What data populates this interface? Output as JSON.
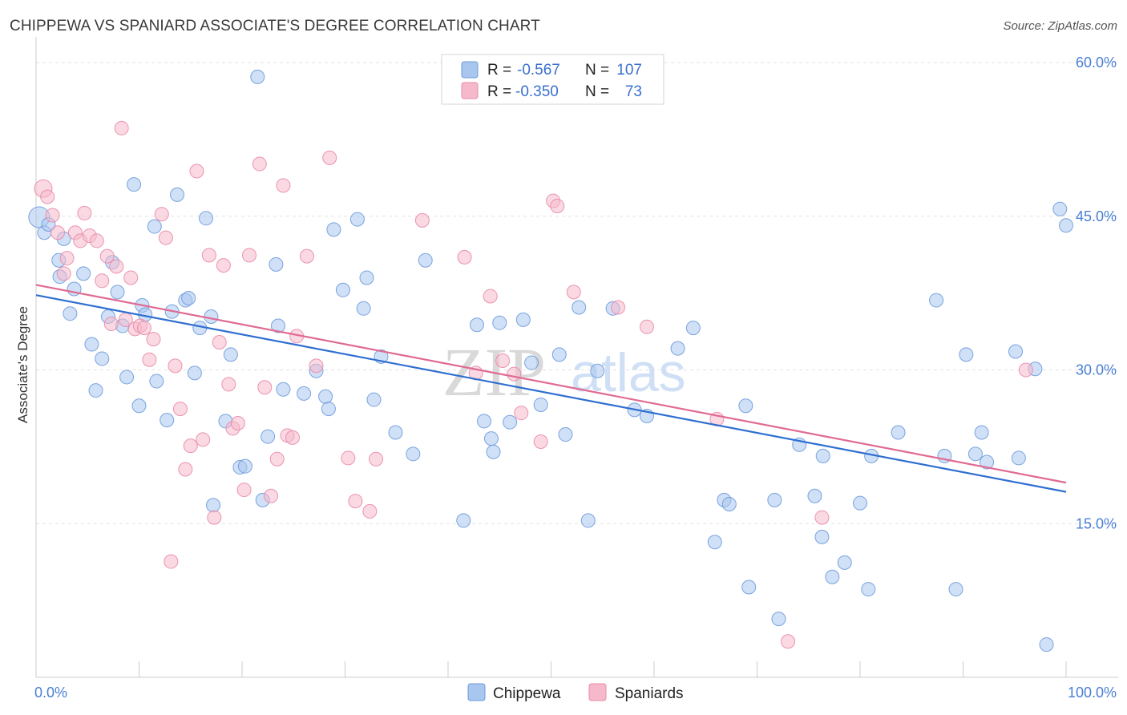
{
  "title": "CHIPPEWA VS SPANIARD ASSOCIATE'S DEGREE CORRELATION CHART",
  "source": "Source: ZipAtlas.com",
  "colors": {
    "chippewa_fill": "#a9c6ee",
    "chippewa_stroke": "#6d9bdc",
    "chippewa_line": "#2f6fd0",
    "spaniards_fill": "#f6b9cc",
    "spaniards_stroke": "#e98aa8",
    "spaniards_line": "#e06a93",
    "axis_label": "#4a7fd4",
    "grid": "#e2e2e2"
  },
  "watermark": {
    "zip": "ZIP",
    "atlas": "atlas"
  },
  "legend": {
    "rows": [
      {
        "r_label": "R = ",
        "r_value": "-0.567",
        "n_label": "N = ",
        "n_value": "107"
      },
      {
        "r_label": "R = ",
        "r_value": "-0.350",
        "n_label": "N = ",
        "n_value": "73"
      }
    ]
  },
  "chart_data": {
    "type": "scatter",
    "title": "CHIPPEWA VS SPANIARD ASSOCIATE'S DEGREE CORRELATION CHART",
    "xlabel": "",
    "ylabel": "Associate's Degree",
    "xlim": [
      0,
      100
    ],
    "ylim": [
      0,
      62.5
    ],
    "x_tick_labels": [
      "0.0%",
      "100.0%"
    ],
    "y_ticks": [
      15,
      30,
      45,
      60
    ],
    "y_tick_labels": [
      "15.0%",
      "30.0%",
      "45.0%",
      "60.0%"
    ],
    "grid": true,
    "legend_position": "top-center",
    "series": [
      {
        "name": "Chippewa",
        "r": -0.567,
        "n": 107,
        "trend": {
          "x": [
            0,
            100
          ],
          "y": [
            37.3,
            18.1
          ]
        },
        "points": [
          [
            0.3,
            44.9
          ],
          [
            0.8,
            43.4
          ],
          [
            1.2,
            44.2
          ],
          [
            2.3,
            39.1
          ],
          [
            2.2,
            40.7
          ],
          [
            2.7,
            42.8
          ],
          [
            3.3,
            35.5
          ],
          [
            3.7,
            37.9
          ],
          [
            4.6,
            39.4
          ],
          [
            5.4,
            32.5
          ],
          [
            5.8,
            28.0
          ],
          [
            6.4,
            31.1
          ],
          [
            7.0,
            35.2
          ],
          [
            7.4,
            40.5
          ],
          [
            7.9,
            37.6
          ],
          [
            8.4,
            34.3
          ],
          [
            8.8,
            29.3
          ],
          [
            9.5,
            48.1
          ],
          [
            10.0,
            26.5
          ],
          [
            10.3,
            36.3
          ],
          [
            10.6,
            35.4
          ],
          [
            11.5,
            44.0
          ],
          [
            11.7,
            28.9
          ],
          [
            12.7,
            25.1
          ],
          [
            13.2,
            35.7
          ],
          [
            13.7,
            47.1
          ],
          [
            14.5,
            36.8
          ],
          [
            14.8,
            37.0
          ],
          [
            15.4,
            29.7
          ],
          [
            15.9,
            34.1
          ],
          [
            16.5,
            44.8
          ],
          [
            17.0,
            35.2
          ],
          [
            17.2,
            16.8
          ],
          [
            18.4,
            25.0
          ],
          [
            18.9,
            31.5
          ],
          [
            19.8,
            20.5
          ],
          [
            20.3,
            20.6
          ],
          [
            21.5,
            58.6
          ],
          [
            22.0,
            17.3
          ],
          [
            22.5,
            23.5
          ],
          [
            23.3,
            40.3
          ],
          [
            23.5,
            34.3
          ],
          [
            24.0,
            28.1
          ],
          [
            26.0,
            27.7
          ],
          [
            27.2,
            29.9
          ],
          [
            28.1,
            27.4
          ],
          [
            28.4,
            26.2
          ],
          [
            28.9,
            43.7
          ],
          [
            29.8,
            37.8
          ],
          [
            31.2,
            44.7
          ],
          [
            31.8,
            36.0
          ],
          [
            32.1,
            39.0
          ],
          [
            32.8,
            27.1
          ],
          [
            33.5,
            31.3
          ],
          [
            34.9,
            23.9
          ],
          [
            36.6,
            21.8
          ],
          [
            37.8,
            40.7
          ],
          [
            41.5,
            15.3
          ],
          [
            42.8,
            34.4
          ],
          [
            43.5,
            25.0
          ],
          [
            44.2,
            23.3
          ],
          [
            44.4,
            22.0
          ],
          [
            45.0,
            34.6
          ],
          [
            46.0,
            24.9
          ],
          [
            47.3,
            34.9
          ],
          [
            48.1,
            30.7
          ],
          [
            49.0,
            26.6
          ],
          [
            50.8,
            31.5
          ],
          [
            51.4,
            23.7
          ],
          [
            52.7,
            36.1
          ],
          [
            53.6,
            15.3
          ],
          [
            54.5,
            29.9
          ],
          [
            56.0,
            36.0
          ],
          [
            58.1,
            26.1
          ],
          [
            59.3,
            25.5
          ],
          [
            62.3,
            32.1
          ],
          [
            63.8,
            34.1
          ],
          [
            65.9,
            13.2
          ],
          [
            66.8,
            17.3
          ],
          [
            67.3,
            16.9
          ],
          [
            68.9,
            26.5
          ],
          [
            69.2,
            8.8
          ],
          [
            71.7,
            17.3
          ],
          [
            72.1,
            5.7
          ],
          [
            74.1,
            22.7
          ],
          [
            75.6,
            17.7
          ],
          [
            76.3,
            13.7
          ],
          [
            76.4,
            21.6
          ],
          [
            77.3,
            9.8
          ],
          [
            78.5,
            11.2
          ],
          [
            80.0,
            17.0
          ],
          [
            80.8,
            8.6
          ],
          [
            81.1,
            21.6
          ],
          [
            83.7,
            23.9
          ],
          [
            87.4,
            36.8
          ],
          [
            88.2,
            21.6
          ],
          [
            89.3,
            8.6
          ],
          [
            90.3,
            31.5
          ],
          [
            91.2,
            21.8
          ],
          [
            91.8,
            23.9
          ],
          [
            92.3,
            21.0
          ],
          [
            95.1,
            31.8
          ],
          [
            95.4,
            21.4
          ],
          [
            97.0,
            30.1
          ],
          [
            98.1,
            3.2
          ],
          [
            99.4,
            45.7
          ],
          [
            100.0,
            44.1
          ]
        ]
      },
      {
        "name": "Spaniards",
        "r": -0.35,
        "n": 73,
        "trend": {
          "x": [
            0,
            100
          ],
          "y": [
            38.3,
            19.0
          ]
        },
        "points": [
          [
            0.7,
            47.7
          ],
          [
            1.1,
            46.9
          ],
          [
            1.6,
            45.1
          ],
          [
            2.1,
            43.4
          ],
          [
            2.7,
            39.4
          ],
          [
            3.0,
            40.9
          ],
          [
            3.8,
            43.4
          ],
          [
            4.3,
            42.6
          ],
          [
            4.7,
            45.3
          ],
          [
            5.2,
            43.1
          ],
          [
            5.9,
            42.6
          ],
          [
            6.4,
            38.7
          ],
          [
            6.9,
            41.1
          ],
          [
            7.3,
            34.5
          ],
          [
            7.8,
            40.1
          ],
          [
            8.3,
            53.6
          ],
          [
            8.7,
            34.9
          ],
          [
            9.2,
            39.0
          ],
          [
            9.6,
            34.0
          ],
          [
            10.1,
            34.3
          ],
          [
            10.5,
            34.1
          ],
          [
            11.0,
            31.0
          ],
          [
            11.4,
            33.0
          ],
          [
            12.2,
            45.2
          ],
          [
            12.6,
            42.9
          ],
          [
            13.1,
            11.3
          ],
          [
            13.5,
            30.4
          ],
          [
            14.0,
            26.2
          ],
          [
            14.5,
            20.3
          ],
          [
            15.0,
            22.6
          ],
          [
            15.6,
            49.4
          ],
          [
            16.2,
            23.2
          ],
          [
            16.8,
            41.2
          ],
          [
            17.3,
            15.6
          ],
          [
            17.8,
            32.7
          ],
          [
            18.2,
            40.2
          ],
          [
            18.7,
            28.6
          ],
          [
            19.1,
            24.3
          ],
          [
            19.6,
            24.8
          ],
          [
            20.2,
            18.3
          ],
          [
            20.7,
            41.2
          ],
          [
            21.7,
            50.1
          ],
          [
            22.2,
            28.3
          ],
          [
            22.8,
            17.7
          ],
          [
            23.4,
            21.3
          ],
          [
            24.0,
            48.0
          ],
          [
            24.4,
            23.6
          ],
          [
            24.9,
            23.4
          ],
          [
            25.3,
            33.3
          ],
          [
            26.3,
            41.1
          ],
          [
            27.2,
            30.4
          ],
          [
            28.5,
            50.7
          ],
          [
            30.3,
            21.4
          ],
          [
            31.0,
            17.2
          ],
          [
            32.4,
            16.2
          ],
          [
            33.0,
            21.3
          ],
          [
            37.5,
            44.6
          ],
          [
            41.6,
            41.0
          ],
          [
            42.7,
            29.7
          ],
          [
            44.1,
            37.2
          ],
          [
            45.3,
            30.9
          ],
          [
            46.4,
            29.6
          ],
          [
            47.1,
            25.8
          ],
          [
            49.0,
            23.0
          ],
          [
            50.2,
            46.5
          ],
          [
            50.6,
            46.0
          ],
          [
            52.2,
            37.6
          ],
          [
            56.5,
            36.1
          ],
          [
            59.3,
            34.2
          ],
          [
            66.1,
            25.2
          ],
          [
            73.0,
            3.5
          ],
          [
            76.3,
            15.6
          ],
          [
            96.1,
            30.0
          ]
        ]
      }
    ]
  },
  "bottom_legend": [
    "Chippewa",
    "Spaniards"
  ]
}
